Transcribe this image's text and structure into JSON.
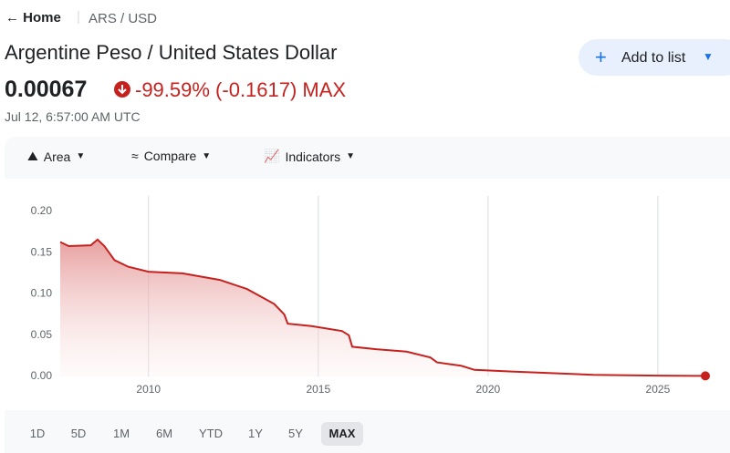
{
  "nav": {
    "back": "Home",
    "crumb": "ARS / USD"
  },
  "title": "Argentine Peso / United States Dollar",
  "price": "0.00067",
  "change": "-99.59% (-0.1617) MAX",
  "timestamp": "Jul 12, 6:57:00 AM UTC",
  "add_button": "Add to list",
  "toolbar": [
    "Area",
    "Compare",
    "Indicators"
  ],
  "ranges": [
    "1D",
    "5D",
    "1M",
    "6M",
    "YTD",
    "1Y",
    "5Y",
    "MAX"
  ],
  "selected_range": "MAX",
  "chart_data": {
    "type": "area",
    "color": "#c5221f",
    "x": [
      2007.4,
      2007.65,
      2008.3,
      2008.5,
      2008.7,
      2009.0,
      2009.4,
      2010.0,
      2011.0,
      2012.1,
      2012.9,
      2013.7,
      2014.0,
      2014.1,
      2014.8,
      2015.7,
      2015.9,
      2016.0,
      2016.7,
      2017.6,
      2018.3,
      2018.5,
      2019.2,
      2019.6,
      2020.7,
      2023.1,
      2025.0,
      2026.4
    ],
    "values": [
      0.163,
      0.158,
      0.159,
      0.166,
      0.158,
      0.141,
      0.133,
      0.127,
      0.125,
      0.117,
      0.106,
      0.088,
      0.075,
      0.064,
      0.061,
      0.055,
      0.05,
      0.036,
      0.033,
      0.03,
      0.023,
      0.017,
      0.013,
      0.008,
      0.006,
      0.002,
      0.001,
      0.00067
    ],
    "xlim": [
      2007.4,
      2026.4
    ],
    "xticks": [
      2010,
      2015,
      2020,
      2025
    ],
    "ylim": [
      0,
      0.2
    ],
    "yticks": [
      {
        "value": 0,
        "label": "0.00"
      },
      {
        "value": 0.05,
        "label": "0.05"
      },
      {
        "value": 0.1,
        "label": "0.10"
      },
      {
        "value": 0.15,
        "label": "0.15"
      },
      {
        "value": 0.2,
        "label": "0.20"
      }
    ],
    "grid": true
  }
}
